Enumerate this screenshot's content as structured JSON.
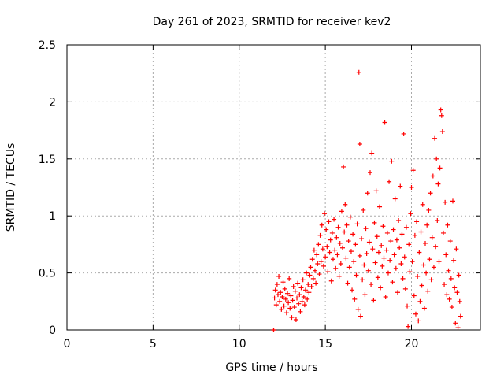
{
  "chart_data": {
    "type": "scatter",
    "title": "Day 261 of 2023, SRMTID for receiver kev2",
    "xlabel": "GPS time / hours",
    "ylabel": "SRMTID / TECUs",
    "xlim": [
      0,
      24
    ],
    "ylim": [
      0,
      2.5
    ],
    "xticks": [
      0,
      5,
      10,
      15,
      20
    ],
    "xtick_labels": [
      "0",
      "5",
      "10",
      "15",
      "20"
    ],
    "yticks": [
      0,
      0.5,
      1,
      1.5,
      2,
      2.5
    ],
    "ytick_labels": [
      "0",
      "0.5",
      "1",
      "1.5",
      "2",
      "2.5"
    ],
    "grid": true,
    "marker": "+",
    "color": "#ff0000",
    "series": [
      {
        "name": "SRMTID",
        "points": [
          [
            12.0,
            0.0
          ],
          [
            12.0,
            0.0
          ],
          [
            12.05,
            0.28
          ],
          [
            12.1,
            0.35
          ],
          [
            12.15,
            0.22
          ],
          [
            12.2,
            0.4
          ],
          [
            12.25,
            0.31
          ],
          [
            12.3,
            0.47
          ],
          [
            12.35,
            0.25
          ],
          [
            12.4,
            0.33
          ],
          [
            12.45,
            0.18
          ],
          [
            12.5,
            0.29
          ],
          [
            12.55,
            0.42
          ],
          [
            12.6,
            0.21
          ],
          [
            12.65,
            0.36
          ],
          [
            12.7,
            0.27
          ],
          [
            12.75,
            0.15
          ],
          [
            12.8,
            0.32
          ],
          [
            12.85,
            0.24
          ],
          [
            12.9,
            0.45
          ],
          [
            12.95,
            0.19
          ],
          [
            13.0,
            0.3
          ],
          [
            13.05,
            0.11
          ],
          [
            13.1,
            0.26
          ],
          [
            13.15,
            0.38
          ],
          [
            13.2,
            0.2
          ],
          [
            13.25,
            0.34
          ],
          [
            13.3,
            0.09
          ],
          [
            13.35,
            0.28
          ],
          [
            13.4,
            0.41
          ],
          [
            13.45,
            0.23
          ],
          [
            13.5,
            0.31
          ],
          [
            13.55,
            0.16
          ],
          [
            13.6,
            0.37
          ],
          [
            13.65,
            0.25
          ],
          [
            13.7,
            0.44
          ],
          [
            13.75,
            0.29
          ],
          [
            13.8,
            0.22
          ],
          [
            13.85,
            0.35
          ],
          [
            13.9,
            0.5
          ],
          [
            13.95,
            0.27
          ],
          [
            14.0,
            0.4
          ],
          [
            14.05,
            0.33
          ],
          [
            14.1,
            0.48
          ],
          [
            14.15,
            0.55
          ],
          [
            14.2,
            0.38
          ],
          [
            14.25,
            0.62
          ],
          [
            14.3,
            0.45
          ],
          [
            14.35,
            0.7
          ],
          [
            14.4,
            0.52
          ],
          [
            14.45,
            0.41
          ],
          [
            14.5,
            0.66
          ],
          [
            14.55,
            0.58
          ],
          [
            14.6,
            0.75
          ],
          [
            14.65,
            0.49
          ],
          [
            14.7,
            0.83
          ],
          [
            14.75,
            0.6
          ],
          [
            14.8,
            0.92
          ],
          [
            14.85,
            0.71
          ],
          [
            14.9,
            0.56
          ],
          [
            14.95,
            1.02
          ],
          [
            15.0,
            0.64
          ],
          [
            15.05,
            0.88
          ],
          [
            15.1,
            0.73
          ],
          [
            15.15,
            0.51
          ],
          [
            15.2,
            0.95
          ],
          [
            15.25,
            0.68
          ],
          [
            15.3,
            0.79
          ],
          [
            15.35,
            0.43
          ],
          [
            15.4,
            0.85
          ],
          [
            15.45,
            0.62
          ],
          [
            15.5,
            0.97
          ],
          [
            15.55,
            0.7
          ],
          [
            15.6,
            0.54
          ],
          [
            15.65,
            0.81
          ],
          [
            15.7,
            0.66
          ],
          [
            15.75,
            0.9
          ],
          [
            15.8,
            0.47
          ],
          [
            15.85,
            0.76
          ],
          [
            15.9,
            0.58
          ],
          [
            15.95,
            1.04
          ],
          [
            16.0,
            0.72
          ],
          [
            16.05,
            1.43
          ],
          [
            16.1,
            0.86
          ],
          [
            16.15,
            1.1
          ],
          [
            16.2,
            0.63
          ],
          [
            16.25,
            0.92
          ],
          [
            16.3,
            0.41
          ],
          [
            16.35,
            0.78
          ],
          [
            16.4,
            0.55
          ],
          [
            16.45,
            0.99
          ],
          [
            16.5,
            0.69
          ],
          [
            16.55,
            0.35
          ],
          [
            16.6,
            0.84
          ],
          [
            16.65,
            0.6
          ],
          [
            16.7,
            0.27
          ],
          [
            16.75,
            0.75
          ],
          [
            16.8,
            0.48
          ],
          [
            16.85,
            0.93
          ],
          [
            16.9,
            0.18
          ],
          [
            16.95,
            2.26
          ],
          [
            17.0,
            0.65
          ],
          [
            17.0,
            1.63
          ],
          [
            17.05,
            0.12
          ],
          [
            17.1,
            0.8
          ],
          [
            17.15,
            0.44
          ],
          [
            17.2,
            1.05
          ],
          [
            17.25,
            0.57
          ],
          [
            17.3,
            0.31
          ],
          [
            17.35,
            0.89
          ],
          [
            17.4,
            0.67
          ],
          [
            17.45,
            1.2
          ],
          [
            17.5,
            0.52
          ],
          [
            17.55,
            0.77
          ],
          [
            17.6,
            1.38
          ],
          [
            17.65,
            0.4
          ],
          [
            17.7,
            1.55
          ],
          [
            17.75,
            0.71
          ],
          [
            17.8,
            0.26
          ],
          [
            17.85,
            0.94
          ],
          [
            17.9,
            0.59
          ],
          [
            17.95,
            1.22
          ],
          [
            18.0,
            0.82
          ],
          [
            18.05,
            0.46
          ],
          [
            18.1,
            0.68
          ],
          [
            18.15,
            1.08
          ],
          [
            18.2,
            0.37
          ],
          [
            18.25,
            0.74
          ],
          [
            18.3,
            0.56
          ],
          [
            18.35,
            0.91
          ],
          [
            18.4,
            0.63
          ],
          [
            18.45,
            1.82
          ],
          [
            18.5,
            0.29
          ],
          [
            18.55,
            0.7
          ],
          [
            18.6,
            0.85
          ],
          [
            18.65,
            0.5
          ],
          [
            18.7,
            1.3
          ],
          [
            18.75,
            0.61
          ],
          [
            18.8,
            0.78
          ],
          [
            18.85,
            1.48
          ],
          [
            18.9,
            0.42
          ],
          [
            18.95,
            0.88
          ],
          [
            19.0,
            0.66
          ],
          [
            19.05,
            1.15
          ],
          [
            19.1,
            0.54
          ],
          [
            19.15,
            0.79
          ],
          [
            19.2,
            0.33
          ],
          [
            19.25,
            0.96
          ],
          [
            19.3,
            0.72
          ],
          [
            19.35,
            1.26
          ],
          [
            19.4,
            0.58
          ],
          [
            19.45,
            0.84
          ],
          [
            19.5,
            0.45
          ],
          [
            19.55,
            1.72
          ],
          [
            19.6,
            0.64
          ],
          [
            19.65,
            0.36
          ],
          [
            19.7,
            0.9
          ],
          [
            19.75,
            0.21
          ],
          [
            19.8,
            0.03
          ],
          [
            19.85,
            0.75
          ],
          [
            19.9,
            0.51
          ],
          [
            19.95,
            1.02
          ],
          [
            20.0,
            1.25
          ],
          [
            20.05,
            0.6
          ],
          [
            20.1,
            1.4
          ],
          [
            20.15,
            0.3
          ],
          [
            20.2,
            0.83
          ],
          [
            20.25,
            0.14
          ],
          [
            20.3,
            0.95
          ],
          [
            20.35,
            0.47
          ],
          [
            20.4,
            0.08
          ],
          [
            20.45,
            0.68
          ],
          [
            20.5,
            0.25
          ],
          [
            20.55,
            0.86
          ],
          [
            20.6,
            0.39
          ],
          [
            20.65,
            1.1
          ],
          [
            20.7,
            0.57
          ],
          [
            20.75,
            0.19
          ],
          [
            20.8,
            0.76
          ],
          [
            20.85,
            0.5
          ],
          [
            20.9,
            0.92
          ],
          [
            20.95,
            0.34
          ],
          [
            21.0,
            1.05
          ],
          [
            21.05,
            0.62
          ],
          [
            21.1,
            1.2
          ],
          [
            21.15,
            0.44
          ],
          [
            21.2,
            0.81
          ],
          [
            21.25,
            1.35
          ],
          [
            21.3,
            0.55
          ],
          [
            21.35,
            1.68
          ],
          [
            21.4,
            0.73
          ],
          [
            21.45,
            1.5
          ],
          [
            21.5,
            0.96
          ],
          [
            21.55,
            1.28
          ],
          [
            21.6,
            0.6
          ],
          [
            21.65,
            1.42
          ],
          [
            21.7,
            1.93
          ],
          [
            21.75,
            1.88
          ],
          [
            21.8,
            1.74
          ],
          [
            21.85,
            0.85
          ],
          [
            21.9,
            0.4
          ],
          [
            21.95,
            1.12
          ],
          [
            22.0,
            0.66
          ],
          [
            22.05,
            0.31
          ],
          [
            22.1,
            0.92
          ],
          [
            22.15,
            0.52
          ],
          [
            22.2,
            0.27
          ],
          [
            22.25,
            0.78
          ],
          [
            22.3,
            0.45
          ],
          [
            22.35,
            0.2
          ],
          [
            22.4,
            1.13
          ],
          [
            22.45,
            0.61
          ],
          [
            22.5,
            0.37
          ],
          [
            22.55,
            0.06
          ],
          [
            22.6,
            0.71
          ],
          [
            22.65,
            0.33
          ],
          [
            22.7,
            0.02
          ],
          [
            22.75,
            0.48
          ],
          [
            22.8,
            0.25
          ],
          [
            22.85,
            0.12
          ]
        ]
      }
    ]
  }
}
